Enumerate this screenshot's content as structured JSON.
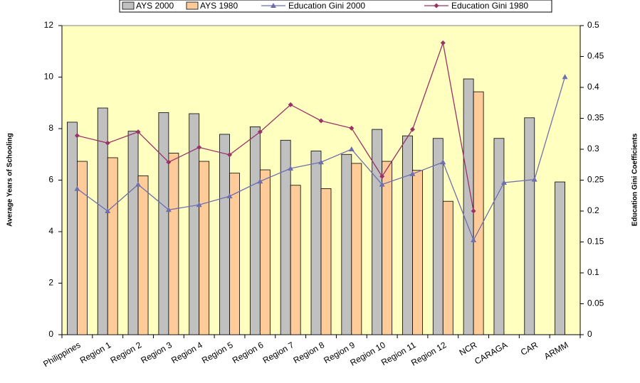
{
  "chart_data": {
    "type": "bar_line",
    "y_label": "Average Years of Schooling",
    "y2_label": "Education Gini Coefficients",
    "categories": [
      "Philippines",
      "Region 1",
      "Region 2",
      "Region 3",
      "Region 4",
      "Region 5",
      "Region 6",
      "Region 7",
      "Region 8",
      "Region 9",
      "Region 10",
      "Region 11",
      "Region 12",
      "NCR",
      "CARAGA",
      "CAR",
      "ARMM"
    ],
    "series": [
      {
        "name": "AYS 2000",
        "kind": "bar",
        "color": "#c0c0c0",
        "values": [
          8.25,
          8.8,
          7.9,
          8.62,
          8.58,
          7.78,
          8.07,
          7.55,
          7.13,
          7.0,
          7.97,
          7.72,
          7.62,
          9.93,
          7.62,
          8.42,
          5.93
        ]
      },
      {
        "name": "AYS 1980",
        "kind": "bar",
        "color": "#ffcc99",
        "values": [
          6.73,
          6.87,
          6.17,
          7.05,
          6.73,
          6.27,
          6.4,
          5.8,
          5.67,
          6.65,
          6.73,
          6.38,
          5.18,
          9.43,
          null,
          null,
          null
        ]
      },
      {
        "name": "Education Gini 2000",
        "kind": "line",
        "marker": "triangle",
        "axis": "y2",
        "color": "#6f6fae",
        "values": [
          0.236,
          0.2,
          0.243,
          0.202,
          0.21,
          0.224,
          0.248,
          0.269,
          0.279,
          0.3,
          0.243,
          0.26,
          0.279,
          0.153,
          0.246,
          0.251,
          0.417
        ]
      },
      {
        "name": "Education Gini 1980",
        "kind": "line",
        "marker": "diamond",
        "axis": "y2",
        "color": "#993366",
        "values": [
          0.322,
          0.31,
          0.328,
          0.279,
          0.303,
          0.291,
          0.328,
          0.372,
          0.346,
          0.334,
          0.256,
          0.332,
          0.472,
          0.2,
          null,
          null,
          null
        ]
      }
    ],
    "ylim": [
      0,
      12
    ],
    "yticks": [
      0,
      2,
      4,
      6,
      8,
      10,
      12
    ],
    "y2lim": [
      0,
      0.5
    ],
    "y2ticks": [
      0,
      0.05,
      0.1,
      0.15,
      0.2,
      0.25,
      0.3,
      0.35,
      0.4,
      0.45,
      0.5
    ],
    "plot_background": "#ffffc0"
  }
}
